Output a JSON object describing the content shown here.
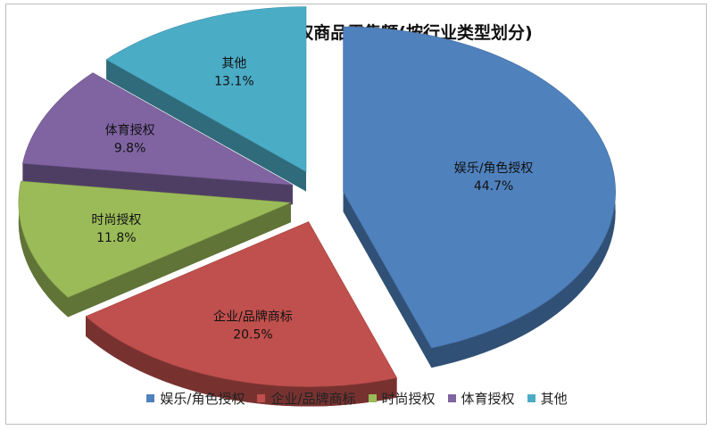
{
  "chart_data": {
    "type": "pie",
    "title": "2017年全球授权商品零售额(按行业类型划分)",
    "categories": [
      "娱乐/角色授权",
      "企业/品牌商标",
      "时尚授权",
      "体育授权",
      "其他"
    ],
    "values": [
      44.7,
      20.5,
      11.8,
      9.8,
      13.1
    ],
    "value_labels": [
      "44.7%",
      "20.5%",
      "11.8%",
      "9.8%",
      "13.1%"
    ],
    "colors": [
      "#4F81BD",
      "#C0504D",
      "#9BBB59",
      "#8064A2",
      "#4BACC6"
    ],
    "legend_position": "bottom",
    "style": "3d-exploded"
  }
}
